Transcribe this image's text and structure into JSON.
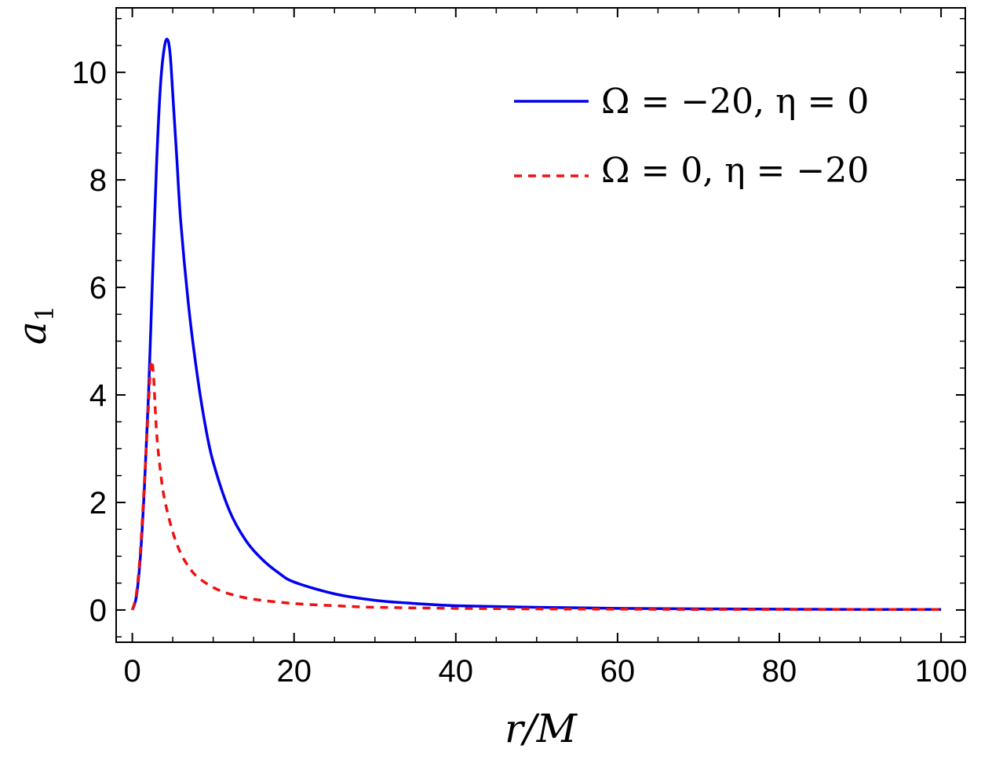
{
  "chart_data": {
    "type": "line",
    "xlabel": "r/M",
    "ylabel": "a",
    "ylabel_subscript": "1",
    "xlim": [
      -2,
      103
    ],
    "ylim": [
      -0.6,
      11.2
    ],
    "xticks": [
      0,
      20,
      40,
      60,
      80,
      100
    ],
    "yticks": [
      0,
      2,
      4,
      6,
      8,
      10
    ],
    "grid": false,
    "legend_position": "top-right",
    "series": [
      {
        "name": "Ω = −20, η = 0",
        "color": "#0000ee",
        "style": "solid",
        "x": [
          0,
          0.5,
          1,
          1.5,
          2,
          2.5,
          3,
          3.5,
          4,
          4.4,
          4.7,
          5,
          5.5,
          6,
          7,
          8,
          9,
          10,
          12,
          14,
          16,
          18,
          20,
          25,
          30,
          35,
          40,
          50,
          60,
          70,
          80,
          90,
          100
        ],
        "y": [
          0,
          0.25,
          1.0,
          2.3,
          4.0,
          6.2,
          8.3,
          9.8,
          10.5,
          10.6,
          10.3,
          9.6,
          8.4,
          7.2,
          5.6,
          4.4,
          3.45,
          2.75,
          1.85,
          1.3,
          0.95,
          0.7,
          0.52,
          0.3,
          0.18,
          0.12,
          0.08,
          0.05,
          0.03,
          0.02,
          0.015,
          0.01,
          0.01
        ]
      },
      {
        "name": "Ω = 0, η = −20",
        "color": "#ee1111",
        "style": "dashed",
        "x": [
          0,
          0.5,
          1,
          1.5,
          2,
          2.3,
          2.6,
          3,
          3.5,
          4,
          5,
          6,
          7,
          8,
          10,
          12,
          15,
          20,
          25,
          30,
          40,
          50,
          60,
          70,
          80,
          90,
          100
        ],
        "y": [
          0,
          0.3,
          1.1,
          2.4,
          3.8,
          4.6,
          4.4,
          3.3,
          2.55,
          2.05,
          1.45,
          1.05,
          0.8,
          0.62,
          0.42,
          0.3,
          0.2,
          0.12,
          0.08,
          0.05,
          0.03,
          0.02,
          0.015,
          0.01,
          0.01,
          0.01,
          0.01
        ]
      }
    ]
  }
}
